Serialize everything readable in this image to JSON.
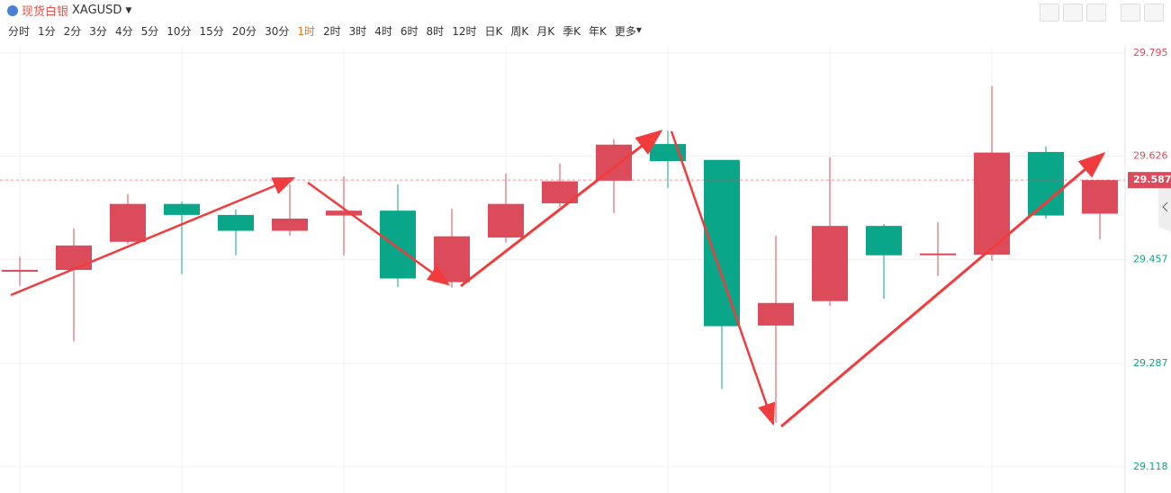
{
  "header": {
    "symbol_name": "现货白银",
    "symbol_code": "XAGUSD",
    "timeframes": [
      "分时",
      "1分",
      "2分",
      "3分",
      "4分",
      "5分",
      "10分",
      "15分",
      "20分",
      "30分",
      "1时",
      "2时",
      "3时",
      "4时",
      "6时",
      "8时",
      "12时",
      "日K",
      "周K",
      "月K",
      "季K",
      "年K",
      "更多"
    ],
    "active_timeframe": "1时"
  },
  "chart_data": {
    "type": "candlestick",
    "open": [
      29.437,
      29.44,
      29.486,
      29.548,
      29.53,
      29.504,
      29.529,
      29.537,
      29.42,
      29.493,
      29.549,
      29.586,
      29.646,
      29.62,
      29.349,
      29.389,
      29.512,
      29.464,
      29.465,
      29.633,
      29.532
    ],
    "high": [
      29.462,
      29.508,
      29.564,
      29.552,
      29.539,
      29.58,
      29.593,
      29.58,
      29.54,
      29.598,
      29.614,
      29.654,
      29.668,
      29.62,
      29.496,
      29.624,
      29.515,
      29.518,
      29.741,
      29.642,
      29.587
    ],
    "low": [
      29.414,
      29.323,
      29.482,
      29.433,
      29.464,
      29.496,
      29.464,
      29.412,
      29.411,
      29.485,
      29.543,
      29.533,
      29.574,
      29.245,
      29.19,
      29.381,
      29.393,
      29.43,
      29.455,
      29.524,
      29.49
    ],
    "close": [
      29.44,
      29.48,
      29.548,
      29.53,
      29.504,
      29.524,
      29.537,
      29.426,
      29.495,
      29.548,
      29.585,
      29.645,
      29.618,
      29.348,
      29.386,
      29.512,
      29.464,
      29.467,
      29.632,
      29.529,
      29.587
    ],
    "up_color": "#dc4b5a",
    "down_color": "#0aa68a",
    "ylim": [
      29.106,
      29.808
    ],
    "yticks": [
      29.118,
      29.287,
      29.457,
      29.626,
      29.795
    ],
    "last_price": 29.587,
    "grid": true
  }
}
